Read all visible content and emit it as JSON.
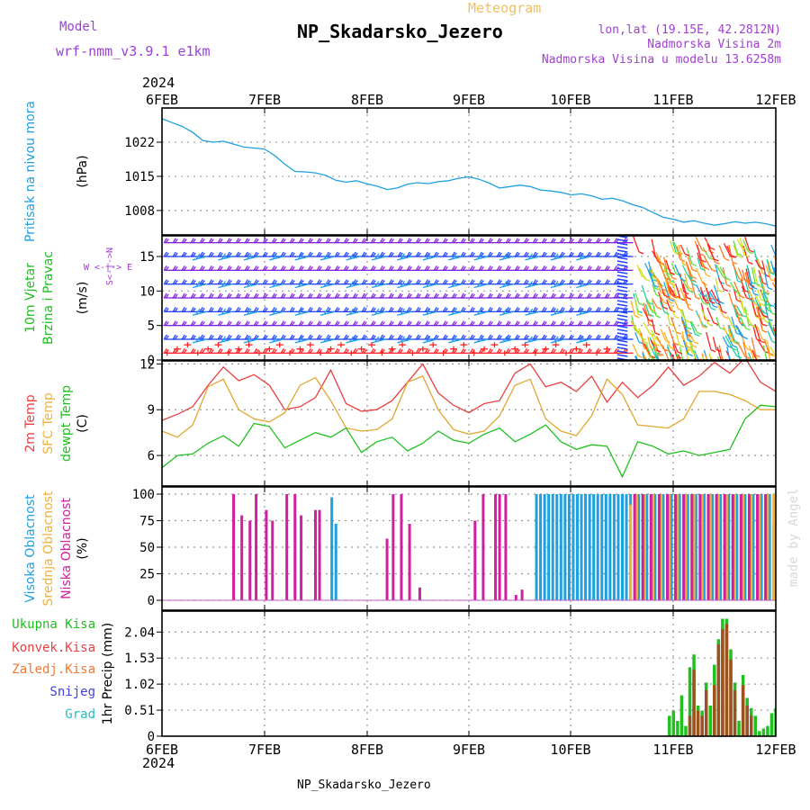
{
  "header": {
    "model_label": "Model",
    "model_name": "wrf-nmm_v3.9.1  e1km",
    "subtitle": "Meteogram",
    "station": "NP_Skadarsko_Jezero",
    "lonlat": "lon,lat (19.15E, 42.2812N)",
    "alt1": "Nadmorska Visina 2m",
    "alt2": "Nadmorska Visina u modelu 13.6258m",
    "footer_station": "NP_Skadarsko_Jezero",
    "credit": "made by Angel",
    "colors": {
      "model": "#9b40d8",
      "subtitle": "#f0c060",
      "station": "#000000",
      "right": "#a040d0"
    }
  },
  "time_axis": {
    "year": "2024",
    "ticks": [
      "6FEB",
      "7FEB",
      "8FEB",
      "9FEB",
      "10FEB",
      "11FEB",
      "12FEB"
    ]
  },
  "chart_data": [
    {
      "id": "pressure",
      "type": "line",
      "ylabel_lines": [
        "Pritisak na nivou mora"
      ],
      "unit": "(hPa)",
      "label_colors": [
        "#1fa0e0"
      ],
      "yticks": [
        1008,
        1015,
        1022
      ],
      "ylim": [
        1003,
        1029
      ],
      "series": [
        {
          "color": "#1fa0e0",
          "x": [
            0,
            0.1,
            0.2,
            0.3,
            0.4,
            0.5,
            0.6,
            0.7,
            0.8,
            0.9,
            1.0,
            1.1,
            1.2,
            1.3,
            1.4,
            1.5,
            1.6,
            1.7,
            1.8,
            1.9,
            2.0,
            2.1,
            2.2,
            2.3,
            2.4,
            2.5,
            2.6,
            2.7,
            2.8,
            2.9,
            3.0,
            3.1,
            3.2,
            3.3,
            3.4,
            3.5,
            3.6,
            3.7,
            3.8,
            3.9,
            4.0,
            4.1,
            4.2,
            4.3,
            4.4,
            4.5,
            4.6,
            4.7,
            4.8,
            4.9,
            5.0,
            5.1,
            5.2,
            5.3,
            5.4,
            5.5,
            5.6,
            5.7,
            5.8,
            5.9,
            6.0
          ],
          "values": [
            1026.8,
            1026.0,
            1025.2,
            1024.0,
            1022.3,
            1022.0,
            1022.2,
            1021.6,
            1021.0,
            1020.8,
            1020.6,
            1019.3,
            1017.5,
            1016.0,
            1015.9,
            1015.7,
            1015.2,
            1014.2,
            1013.8,
            1014.1,
            1013.5,
            1013.0,
            1012.3,
            1012.6,
            1013.4,
            1013.7,
            1013.5,
            1013.9,
            1014.1,
            1014.6,
            1014.9,
            1014.4,
            1013.6,
            1012.6,
            1012.9,
            1013.2,
            1012.9,
            1012.2,
            1012.0,
            1011.7,
            1011.2,
            1011.4,
            1011.0,
            1010.3,
            1010.5,
            1010.0,
            1009.2,
            1008.6,
            1007.6,
            1006.6,
            1006.2,
            1005.6,
            1005.9,
            1005.4,
            1005.0,
            1005.3,
            1005.7,
            1005.4,
            1005.6,
            1005.3,
            1004.8
          ]
        }
      ]
    },
    {
      "id": "wind",
      "type": "barbs",
      "ylabel_lines": [
        "10m Vjetar",
        "Brzina i Pravac"
      ],
      "unit": "(m/s)",
      "label_colors": [
        "#20c020",
        "#20c020"
      ],
      "compass_lines": [
        "W  <-|->  E",
        "S<-|->N"
      ],
      "yticks": [
        0,
        5,
        10,
        15
      ],
      "ylim": [
        0,
        18
      ],
      "barb_palette": [
        "#ff2020",
        "#ff7a20",
        "#ffb020",
        "#d0e020",
        "#60e040",
        "#20d0a0",
        "#20a0e8",
        "#2040ff",
        "#8020e0"
      ]
    },
    {
      "id": "temperature",
      "type": "line",
      "ylabel_lines": [
        "2m Temp",
        "SFC Temp",
        "dewpt Temp"
      ],
      "unit": "(C)",
      "label_colors": [
        "#e84040",
        "#f0b040",
        "#20c020"
      ],
      "yticks": [
        6,
        9,
        12
      ],
      "ylim": [
        4,
        12.2
      ],
      "series": [
        {
          "name": "2m Temp",
          "color": "#e84040",
          "x": [
            0,
            0.15,
            0.3,
            0.45,
            0.6,
            0.75,
            0.9,
            1.05,
            1.2,
            1.35,
            1.5,
            1.65,
            1.8,
            1.95,
            2.1,
            2.25,
            2.4,
            2.55,
            2.7,
            2.85,
            3.0,
            3.15,
            3.3,
            3.45,
            3.6,
            3.75,
            3.9,
            4.05,
            4.2,
            4.35,
            4.5,
            4.65,
            4.8,
            4.95,
            5.1,
            5.25,
            5.4,
            5.55,
            5.7,
            5.85,
            6.0
          ],
          "values": [
            8.3,
            8.7,
            9.2,
            10.6,
            11.8,
            10.9,
            11.3,
            10.6,
            9.0,
            9.2,
            9.8,
            11.6,
            9.4,
            8.9,
            9.0,
            9.6,
            10.8,
            12.0,
            10.1,
            9.3,
            8.8,
            9.4,
            9.6,
            11.4,
            12.0,
            10.5,
            10.8,
            10.2,
            11.2,
            9.5,
            10.8,
            9.8,
            10.6,
            11.8,
            10.6,
            11.2,
            12.1,
            11.4,
            12.4,
            10.8,
            10.2
          ]
        },
        {
          "name": "SFC Temp",
          "color": "#e0a830",
          "x": [
            0,
            0.15,
            0.3,
            0.45,
            0.6,
            0.75,
            0.9,
            1.05,
            1.2,
            1.35,
            1.5,
            1.65,
            1.8,
            1.95,
            2.1,
            2.25,
            2.4,
            2.55,
            2.7,
            2.85,
            3.0,
            3.15,
            3.3,
            3.45,
            3.6,
            3.75,
            3.9,
            4.05,
            4.2,
            4.35,
            4.5,
            4.65,
            4.8,
            4.95,
            5.1,
            5.25,
            5.4,
            5.55,
            5.7,
            5.85,
            6.0
          ],
          "values": [
            7.6,
            7.2,
            8.0,
            10.5,
            11.0,
            9.0,
            8.4,
            8.2,
            8.8,
            10.6,
            11.1,
            9.6,
            7.8,
            7.6,
            7.7,
            8.4,
            10.8,
            11.2,
            9.0,
            7.7,
            7.4,
            7.6,
            8.6,
            10.6,
            11.0,
            8.4,
            7.6,
            7.3,
            8.6,
            11.0,
            10.0,
            8.0,
            7.9,
            7.8,
            8.4,
            10.2,
            10.2,
            10.0,
            9.6,
            9.0,
            9.0
          ]
        },
        {
          "name": "dewpt Temp",
          "color": "#20c020",
          "x": [
            0,
            0.15,
            0.3,
            0.45,
            0.6,
            0.75,
            0.9,
            1.05,
            1.2,
            1.35,
            1.5,
            1.65,
            1.8,
            1.95,
            2.1,
            2.25,
            2.4,
            2.55,
            2.7,
            2.85,
            3.0,
            3.15,
            3.3,
            3.45,
            3.6,
            3.75,
            3.9,
            4.05,
            4.2,
            4.35,
            4.5,
            4.65,
            4.8,
            4.95,
            5.1,
            5.25,
            5.4,
            5.55,
            5.7,
            5.85,
            6.0
          ],
          "values": [
            5.2,
            6.0,
            6.1,
            6.8,
            7.3,
            6.6,
            8.1,
            7.9,
            6.5,
            7.0,
            7.5,
            7.2,
            7.8,
            6.2,
            6.9,
            7.2,
            6.3,
            6.8,
            7.6,
            7.0,
            6.8,
            7.4,
            7.8,
            6.9,
            7.4,
            8.0,
            6.9,
            6.4,
            6.7,
            6.6,
            4.6,
            6.9,
            6.6,
            6.1,
            6.3,
            6.0,
            6.2,
            6.4,
            8.4,
            9.3,
            9.2
          ]
        }
      ]
    },
    {
      "id": "cloud",
      "type": "bar",
      "ylabel_lines": [
        "Visoka Oblacnost",
        "Srednja Oblacnost",
        "Niska Oblacnost"
      ],
      "unit": "(%)",
      "label_colors": [
        "#1fa0e0",
        "#f0b040",
        "#d020a0"
      ],
      "yticks": [
        0,
        25,
        50,
        75,
        100
      ],
      "ylim": [
        0,
        100
      ],
      "series": [
        {
          "name": "Visoka Oblacnost",
          "color": "#1fa0e0",
          "x": [
            1.66,
            1.7,
            3.66,
            3.7,
            3.74,
            3.78,
            3.82,
            3.86,
            3.9,
            3.94,
            3.98,
            4.02,
            4.06,
            4.1,
            4.14,
            4.18,
            4.22,
            4.26,
            4.3,
            4.34,
            4.38,
            4.42,
            4.46,
            4.5,
            4.54,
            4.58,
            4.62,
            4.66,
            4.7,
            4.74,
            4.78,
            4.82,
            4.86,
            4.9,
            4.94,
            4.98,
            5.02,
            5.06,
            5.1,
            5.14,
            5.18,
            5.22,
            5.26,
            5.3,
            5.34,
            5.38,
            5.42,
            5.46,
            5.5,
            5.54,
            5.58,
            5.62,
            5.66,
            5.7,
            5.74,
            5.78,
            5.82,
            5.86,
            5.9,
            5.94,
            5.98
          ],
          "values": [
            97,
            72,
            100,
            100,
            100,
            100,
            100,
            100,
            100,
            100,
            100,
            100,
            100,
            100,
            100,
            100,
            100,
            100,
            100,
            100,
            100,
            100,
            100,
            100,
            100,
            100,
            100,
            100,
            100,
            100,
            100,
            100,
            100,
            100,
            100,
            100,
            100,
            100,
            100,
            100,
            100,
            100,
            100,
            100,
            100,
            100,
            100,
            100,
            100,
            100,
            100,
            100,
            100,
            100,
            100,
            100,
            100,
            100,
            100,
            100,
            72
          ]
        },
        {
          "name": "Srednja Oblacnost",
          "color": "#f0b040",
          "x": [
            4.58,
            4.64,
            4.72,
            4.8,
            4.88,
            4.96,
            5.04,
            5.12,
            5.2,
            5.28,
            5.36,
            5.44,
            5.52,
            5.6,
            5.68,
            5.76,
            5.84,
            5.92,
            5.98
          ],
          "values": [
            90,
            100,
            100,
            100,
            100,
            100,
            100,
            100,
            100,
            100,
            100,
            100,
            100,
            100,
            100,
            100,
            100,
            100,
            100
          ]
        },
        {
          "name": "Niska Oblacnost",
          "color": "#d020a0",
          "x": [
            0.7,
            0.78,
            0.86,
            0.92,
            1.02,
            1.08,
            1.22,
            1.3,
            1.36,
            1.5,
            1.54,
            2.2,
            2.26,
            2.34,
            2.42,
            2.52,
            3.06,
            3.14,
            3.26,
            3.3,
            3.36,
            3.46,
            3.52,
            4.62,
            4.7,
            4.78,
            4.86,
            4.94,
            5.02,
            5.1,
            5.18,
            5.26,
            5.34,
            5.42,
            5.5,
            5.58,
            5.66,
            5.74,
            5.82,
            5.9
          ],
          "values": [
            100,
            80,
            75,
            100,
            85,
            75,
            100,
            100,
            80,
            85,
            85,
            58,
            100,
            100,
            72,
            12,
            75,
            100,
            100,
            100,
            100,
            5,
            10,
            100,
            100,
            100,
            100,
            100,
            100,
            100,
            100,
            100,
            100,
            100,
            100,
            100,
            100,
            100,
            100,
            100
          ]
        }
      ]
    },
    {
      "id": "precip",
      "type": "bar",
      "ylabel_lines": [
        "1hr Precip (mm)"
      ],
      "unit": "",
      "label_colors": [
        "#000000"
      ],
      "legend": [
        {
          "label": "Ukupna Kisa",
          "color": "#20c020"
        },
        {
          "label": "Konvek.Kisa",
          "color": "#e84040"
        },
        {
          "label": "Zaledj.Kisa",
          "color": "#f07830"
        },
        {
          "label": "Snijeg",
          "color": "#4040e0"
        },
        {
          "label": "Grad",
          "color": "#20c0c0"
        }
      ],
      "yticks": [
        0,
        0.51,
        1.02,
        1.53,
        2.04
      ],
      "ylim": [
        0,
        2.45
      ],
      "series": [
        {
          "name": "Ukupna Kisa",
          "color": "#20c020",
          "x": [
            4.96,
            5.0,
            5.04,
            5.08,
            5.12,
            5.16,
            5.2,
            5.24,
            5.28,
            5.32,
            5.36,
            5.4,
            5.44,
            5.48,
            5.52,
            5.56,
            5.6,
            5.64,
            5.68,
            5.72,
            5.76,
            5.8,
            5.84,
            5.88,
            5.92,
            5.96,
            6.0
          ],
          "values": [
            0.4,
            0.5,
            0.3,
            0.8,
            0.2,
            1.35,
            1.6,
            0.6,
            0.5,
            1.05,
            0.6,
            1.4,
            1.9,
            2.3,
            2.3,
            1.7,
            1.05,
            0.3,
            1.2,
            0.75,
            0.55,
            0.4,
            0.1,
            0.15,
            0.2,
            0.45,
            0.55
          ]
        },
        {
          "name": "Konvek.Kisa",
          "color": "#a05020",
          "x": [
            5.16,
            5.2,
            5.24,
            5.28,
            5.32,
            5.4,
            5.44,
            5.48,
            5.52,
            5.56,
            5.6,
            5.68,
            5.72,
            5.76
          ],
          "values": [
            0.4,
            1.3,
            0.5,
            0.4,
            0.9,
            1.0,
            1.8,
            2.1,
            2.2,
            1.5,
            0.9,
            1.0,
            0.6,
            0.4
          ]
        }
      ]
    }
  ]
}
